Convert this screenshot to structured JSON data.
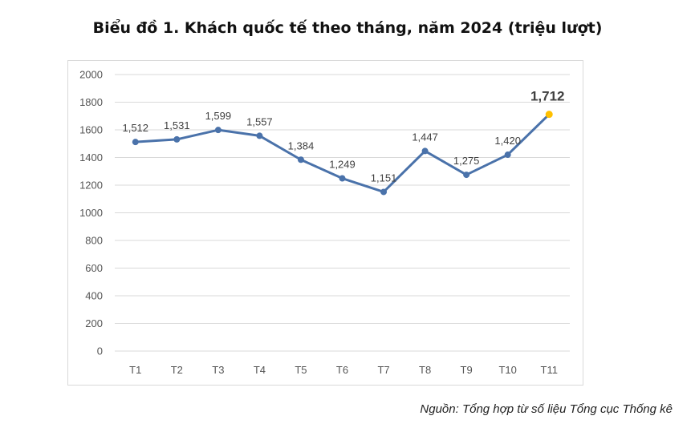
{
  "title": "Biểu đồ 1. Khách quốc tế theo tháng, năm 2024 (triệu lượt)",
  "source": "Nguồn: Tổng hợp từ số liệu Tổng cục Thống kê",
  "chart_data": {
    "type": "line",
    "title": "Biểu đồ 1. Khách quốc tế theo tháng, năm 2024 (triệu lượt)",
    "xlabel": "",
    "ylabel": "",
    "categories": [
      "T1",
      "T2",
      "T3",
      "T4",
      "T5",
      "T6",
      "T7",
      "T8",
      "T9",
      "T10",
      "T11"
    ],
    "values": [
      1512,
      1531,
      1599,
      1557,
      1384,
      1249,
      1151,
      1447,
      1275,
      1420,
      1712
    ],
    "data_labels": [
      "1,512",
      "1,531",
      "1,599",
      "1,557",
      "1,384",
      "1,249",
      "1,151",
      "1,447",
      "1,275",
      "1,420",
      "1,712"
    ],
    "y_ticks": [
      "2000",
      "1800",
      "1600",
      "1400",
      "1200",
      "1000",
      "800",
      "600",
      "400",
      "200",
      "0"
    ],
    "ylim": [
      0,
      2000
    ],
    "grid": true,
    "highlight_index": 10,
    "colors": {
      "line": "#4a72aa",
      "marker": "#4a72aa",
      "highlight": "#ffc000",
      "grid": "#d9d9d9"
    }
  }
}
